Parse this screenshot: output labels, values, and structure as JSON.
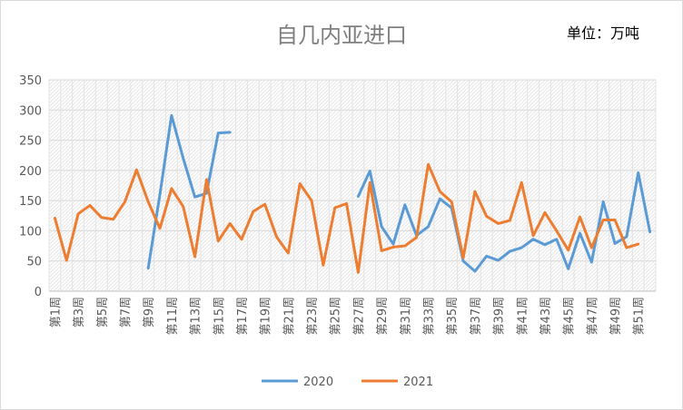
{
  "chart_data": {
    "type": "line",
    "title": "自几内亚进口",
    "unit_label": "单位：万吨",
    "ylim": [
      0,
      350
    ],
    "yticks": [
      "0",
      "50",
      "100",
      "150",
      "200",
      "250",
      "300",
      "350"
    ],
    "x_tick_labels": [
      "第1周",
      "第3周",
      "第5周",
      "第7周",
      "第9周",
      "第11周",
      "第13周",
      "第15周",
      "第17周",
      "第19周",
      "第21周",
      "第23周",
      "第25周",
      "第27周",
      "第29周",
      "第31周",
      "第33周",
      "第35周",
      "第37周",
      "第39周",
      "第41周",
      "第43周",
      "第45周",
      "第47周",
      "第49周",
      "第51周"
    ],
    "x": [
      1,
      2,
      3,
      4,
      5,
      6,
      7,
      8,
      9,
      10,
      11,
      12,
      13,
      14,
      15,
      16,
      17,
      18,
      19,
      20,
      21,
      22,
      23,
      24,
      25,
      26,
      27,
      28,
      29,
      30,
      31,
      32,
      33,
      34,
      35,
      36,
      37,
      38,
      39,
      40,
      41,
      42,
      43,
      44,
      45,
      46,
      47,
      48,
      49,
      50,
      51,
      52
    ],
    "grid": true,
    "legend_position": "bottom",
    "series": [
      {
        "name": "2020",
        "color": "#5b9bd5",
        "values": [
          null,
          null,
          null,
          null,
          null,
          null,
          null,
          null,
          38,
          160,
          291,
          220,
          156,
          162,
          262,
          263,
          null,
          null,
          null,
          null,
          null,
          null,
          null,
          null,
          null,
          null,
          157,
          199,
          107,
          78,
          143,
          92,
          107,
          153,
          138,
          50,
          33,
          58,
          51,
          66,
          72,
          86,
          77,
          86,
          37,
          96,
          48,
          148,
          79,
          90,
          196,
          98
        ]
      },
      {
        "name": "2021",
        "color": "#ed7d31",
        "values": [
          121,
          51,
          128,
          142,
          122,
          119,
          148,
          201,
          148,
          104,
          170,
          140,
          57,
          185,
          83,
          112,
          86,
          132,
          144,
          90,
          63,
          178,
          150,
          43,
          138,
          145,
          31,
          180,
          67,
          73,
          75,
          89,
          210,
          165,
          148,
          55,
          165,
          124,
          112,
          117,
          180,
          92,
          130,
          100,
          68,
          123,
          72,
          118,
          118,
          72,
          78,
          null
        ]
      }
    ]
  }
}
